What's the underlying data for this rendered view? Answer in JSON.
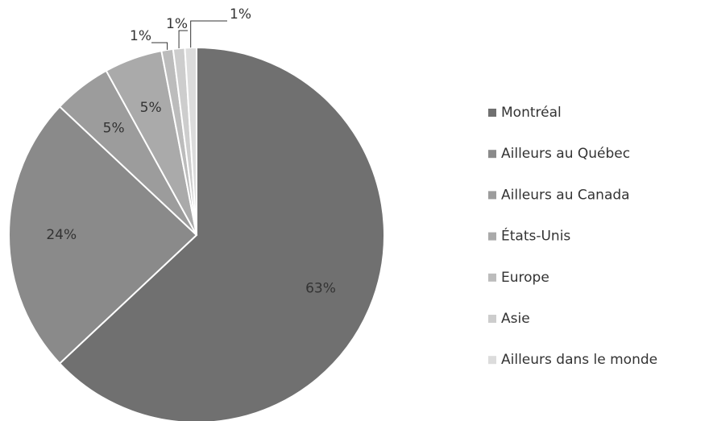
{
  "chart_data": {
    "type": "pie",
    "categories": [
      "Montréal",
      "Ailleurs au Québec",
      "Ailleurs au Canada",
      "États-Unis",
      "Europe",
      "Asie",
      "Ailleurs dans le monde"
    ],
    "values": [
      63,
      24,
      5,
      5,
      1,
      1,
      1
    ],
    "value_labels": [
      "63%",
      "24%",
      "5%",
      "5%",
      "1%",
      "1%",
      "1%"
    ],
    "colors": [
      "#707070",
      "#8a8a8a",
      "#9c9c9c",
      "#aaaaaa",
      "#bcbcbc",
      "#cdcdcd",
      "#dcdcdc"
    ],
    "legend": "right"
  }
}
